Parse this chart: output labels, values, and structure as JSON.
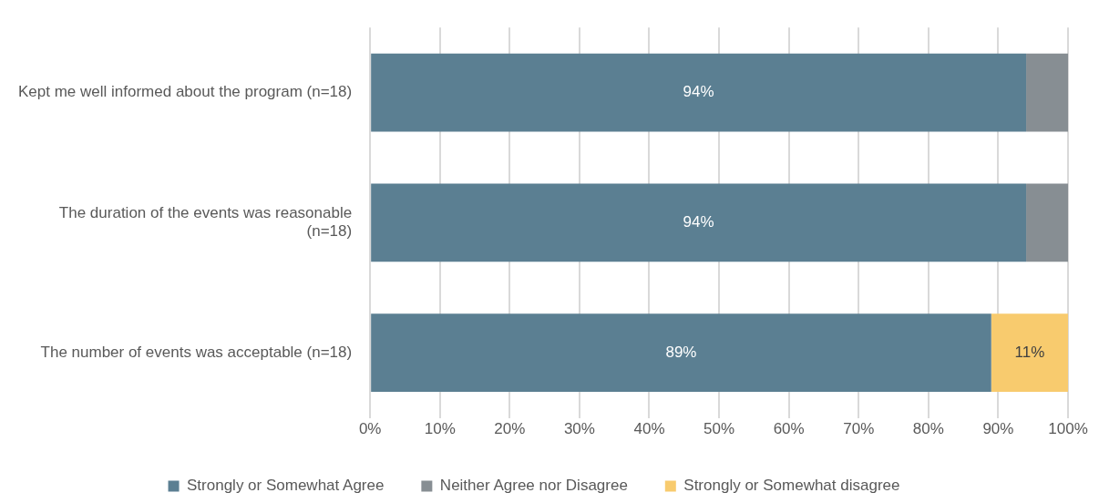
{
  "chart_data": {
    "type": "bar",
    "orientation": "horizontal",
    "stacked": true,
    "categories": [
      "Kept me well informed about the program (n=18)",
      "The duration of the events was reasonable (n=18)",
      "The number of events was acceptable (n=18)"
    ],
    "series": [
      {
        "name": "Strongly or Somewhat Agree",
        "color": "#5b7f92",
        "values": [
          94,
          94,
          89
        ],
        "value_labels": [
          "94%",
          "94%",
          "89%"
        ]
      },
      {
        "name": "Neither Agree nor Disagree",
        "color": "#878e93",
        "values": [
          6,
          6,
          null
        ],
        "value_labels": [
          null,
          null,
          null
        ]
      },
      {
        "name": "Strongly or Somewhat disagree",
        "color": "#f8cb6e",
        "values": [
          null,
          null,
          11
        ],
        "value_labels": [
          null,
          null,
          "11%"
        ]
      }
    ],
    "xlim": [
      0,
      100
    ],
    "xticks": [
      {
        "value": 0,
        "label": "0%"
      },
      {
        "value": 10,
        "label": "10%"
      },
      {
        "value": 20,
        "label": "20%"
      },
      {
        "value": 30,
        "label": "30%"
      },
      {
        "value": 40,
        "label": "40%"
      },
      {
        "value": 50,
        "label": "50%"
      },
      {
        "value": 60,
        "label": "60%"
      },
      {
        "value": 70,
        "label": "70%"
      },
      {
        "value": 80,
        "label": "80%"
      },
      {
        "value": 90,
        "label": "90%"
      },
      {
        "value": 100,
        "label": "100%"
      }
    ],
    "grid": "x",
    "legend": "bottom"
  }
}
